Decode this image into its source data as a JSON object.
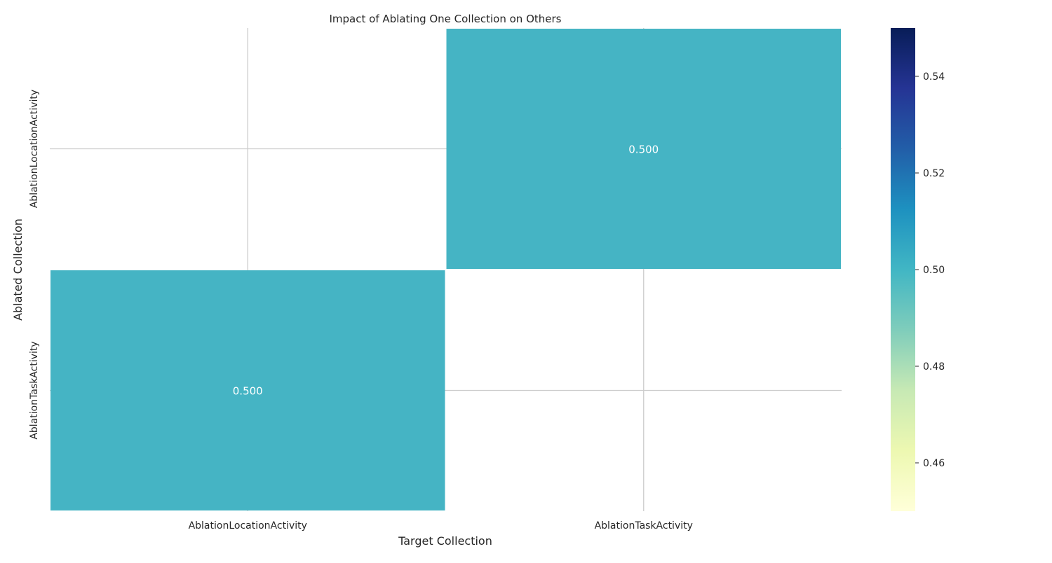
{
  "chart_data": {
    "type": "heatmap",
    "title": "Impact of Ablating One Collection on Others",
    "xlabel": "Target Collection",
    "ylabel": "Ablated Collection",
    "x_categories": [
      "AblationLocationActivity",
      "AblationTaskActivity"
    ],
    "y_categories": [
      "AblationLocationActivity",
      "AblationTaskActivity"
    ],
    "values": [
      [
        null,
        0.5
      ],
      [
        0.5,
        null
      ]
    ],
    "cell_labels": [
      [
        "",
        "0.500"
      ],
      [
        "0.500",
        ""
      ]
    ],
    "colorbar": {
      "range": [
        0.45,
        0.55
      ],
      "ticks": [
        "0.46",
        "0.48",
        "0.50",
        "0.52",
        "0.54"
      ],
      "colormap": "YlGnBu"
    },
    "cell_color": "#45b4c4",
    "cell_text_color": "#ffffff",
    "grid": true
  }
}
